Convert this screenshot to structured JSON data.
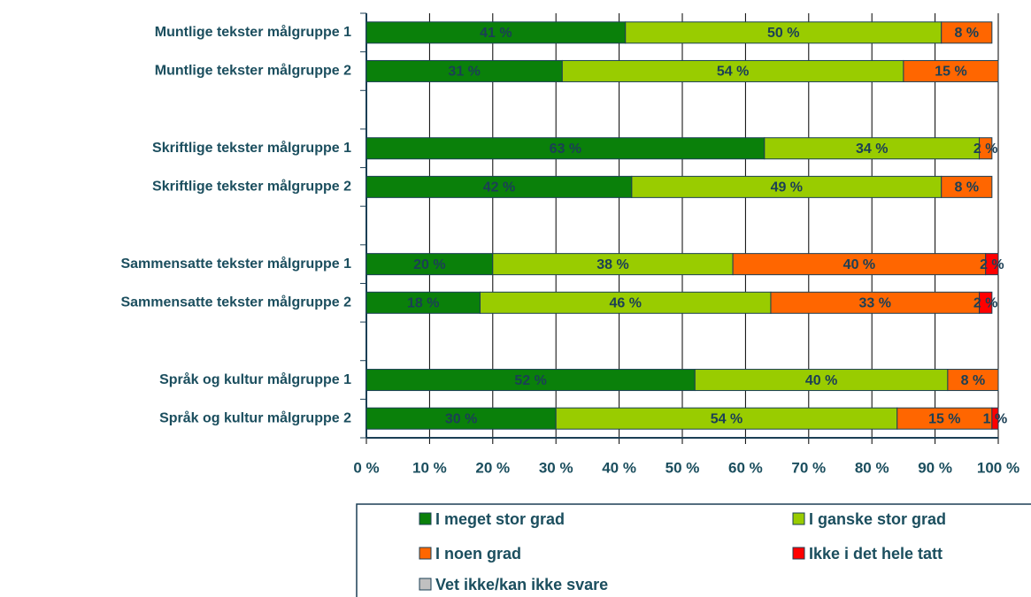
{
  "chart_data": {
    "type": "stacked_bar_horizontal",
    "categories": [
      "Muntlige tekster målgruppe 1",
      "Muntlige tekster målgruppe 2",
      null,
      "Skriftlige tekster målgruppe 1",
      "Skriftlige tekster målgruppe 2",
      null,
      "Sammensatte tekster målgruppe 1",
      "Sammensatte tekster målgruppe 2",
      null,
      "Språk og kultur målgruppe 1",
      "Språk og kultur målgruppe 2"
    ],
    "series": [
      {
        "name": "I meget stor grad",
        "color": "#0a800a",
        "values": [
          41,
          31,
          null,
          63,
          42,
          null,
          20,
          18,
          null,
          52,
          30
        ],
        "value_labels": [
          "41 %",
          "31 %",
          null,
          "63 %",
          "42 %",
          null,
          "20 %",
          "18 %",
          null,
          "52 %",
          "30 %"
        ]
      },
      {
        "name": "I ganske stor grad",
        "color": "#99cc00",
        "values": [
          50,
          54,
          null,
          34,
          49,
          null,
          38,
          46,
          null,
          40,
          54
        ],
        "value_labels": [
          "50 %",
          "54 %",
          null,
          "34 %",
          "49 %",
          null,
          "38 %",
          "46 %",
          null,
          "40 %",
          "54 %"
        ]
      },
      {
        "name": "I noen grad",
        "color": "#ff6600",
        "values": [
          8,
          15,
          null,
          2,
          8,
          null,
          40,
          33,
          null,
          8,
          15
        ],
        "value_labels": [
          "8 %",
          "15 %",
          null,
          "2 %",
          "8 %",
          null,
          "40 %",
          "33 %",
          null,
          "8 %",
          "15 %"
        ]
      },
      {
        "name": "Ikke i det hele tatt",
        "color": "#ff0000",
        "values": [
          null,
          null,
          null,
          null,
          null,
          null,
          2,
          2,
          null,
          null,
          1
        ],
        "value_labels": [
          null,
          null,
          null,
          null,
          null,
          null,
          "2 %",
          "2 %",
          null,
          null,
          "1 %"
        ]
      },
      {
        "name": "Vet ikke/kan ikke svare",
        "color": "#c0c0c0",
        "values": [
          null,
          null,
          null,
          null,
          null,
          null,
          null,
          null,
          null,
          null,
          null
        ]
      }
    ],
    "xlim": [
      0,
      100
    ],
    "xticks": [
      {
        "value": 0,
        "label": "0 %"
      },
      {
        "value": 10,
        "label": "10 %"
      },
      {
        "value": 20,
        "label": "20 %"
      },
      {
        "value": 30,
        "label": "30 %"
      },
      {
        "value": 40,
        "label": "40 %"
      },
      {
        "value": 50,
        "label": "50 %"
      },
      {
        "value": 60,
        "label": "60 %"
      },
      {
        "value": 70,
        "label": "70 %"
      },
      {
        "value": 80,
        "label": "80 %"
      },
      {
        "value": 90,
        "label": "90 %"
      },
      {
        "value": 100,
        "label": "100 %"
      }
    ],
    "grid": true
  }
}
